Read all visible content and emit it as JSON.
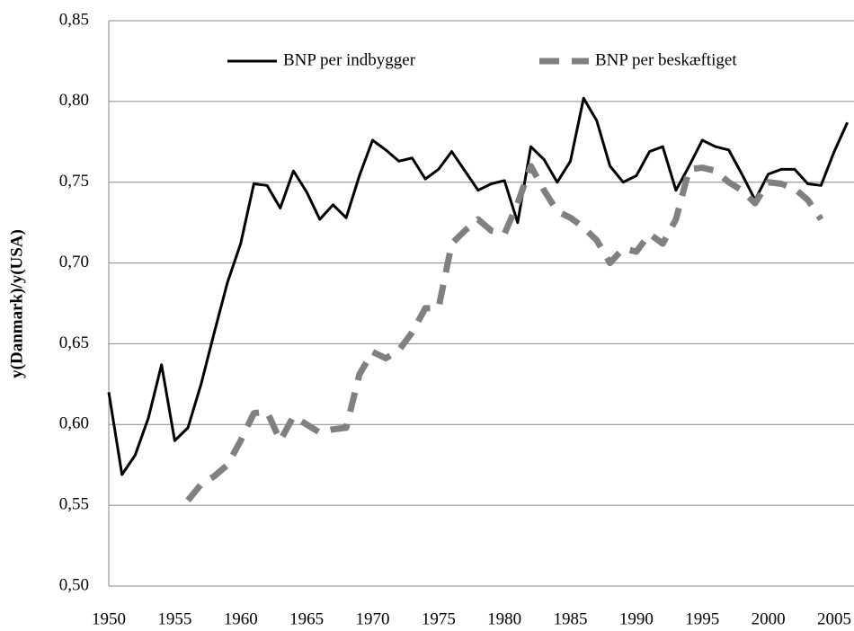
{
  "chart_data": {
    "type": "line",
    "y_label": "y(Danmark)/y(USA)",
    "x": [
      1950,
      1951,
      1952,
      1953,
      1954,
      1955,
      1956,
      1957,
      1958,
      1959,
      1960,
      1961,
      1962,
      1963,
      1964,
      1965,
      1966,
      1967,
      1968,
      1969,
      1970,
      1971,
      1972,
      1973,
      1974,
      1975,
      1976,
      1977,
      1978,
      1979,
      1980,
      1981,
      1982,
      1983,
      1984,
      1985,
      1986,
      1987,
      1988,
      1989,
      1990,
      1991,
      1992,
      1993,
      1994,
      1995,
      1996,
      1997,
      1998,
      1999,
      2000,
      2001,
      2002,
      2003,
      2004,
      2005,
      2006
    ],
    "series": [
      {
        "name": "BNP per indbygger",
        "color": "#000000",
        "dashed": false,
        "values": [
          0.62,
          0.569,
          0.581,
          0.604,
          0.637,
          0.59,
          0.598,
          0.625,
          0.657,
          0.688,
          0.712,
          0.749,
          0.748,
          0.734,
          0.757,
          0.744,
          0.727,
          0.736,
          0.728,
          0.754,
          0.776,
          0.77,
          0.763,
          0.765,
          0.752,
          0.758,
          0.769,
          0.757,
          0.745,
          0.749,
          0.751,
          0.725,
          0.772,
          0.764,
          0.75,
          0.763,
          0.802,
          0.788,
          0.76,
          0.75,
          0.754,
          0.769,
          0.772,
          0.745,
          0.76,
          0.776,
          0.772,
          0.77,
          0.755,
          0.739,
          0.755,
          0.758,
          0.758,
          0.749,
          0.748,
          0.769,
          0.787
        ]
      },
      {
        "name": "BNP per beskæftiget",
        "color": "#808080",
        "dashed": true,
        "values": [
          null,
          null,
          null,
          null,
          null,
          null,
          0.553,
          0.563,
          0.568,
          0.575,
          0.59,
          0.607,
          0.608,
          0.59,
          0.605,
          0.6,
          0.595,
          0.597,
          0.598,
          0.631,
          0.645,
          0.641,
          0.646,
          0.657,
          0.672,
          0.672,
          0.712,
          0.72,
          0.727,
          0.72,
          0.718,
          0.737,
          0.76,
          0.745,
          0.732,
          0.728,
          0.722,
          0.714,
          0.7,
          0.709,
          0.707,
          0.718,
          0.712,
          0.727,
          0.758,
          0.759,
          0.757,
          0.75,
          0.745,
          0.737,
          0.75,
          0.749,
          0.746,
          0.739,
          0.727,
          null,
          null
        ]
      }
    ],
    "xlim": [
      1950,
      2006.5
    ],
    "xticks": [
      1950,
      1955,
      1960,
      1965,
      1970,
      1975,
      1980,
      1985,
      1990,
      1995,
      2000,
      2005
    ],
    "ylim": [
      0.5,
      0.85
    ],
    "yticks": [
      {
        "value": 0.5,
        "label": "0,50"
      },
      {
        "value": 0.55,
        "label": "0,55"
      },
      {
        "value": 0.6,
        "label": "0,60"
      },
      {
        "value": 0.65,
        "label": "0,65"
      },
      {
        "value": 0.7,
        "label": "0,70"
      },
      {
        "value": 0.75,
        "label": "0,75"
      },
      {
        "value": 0.8,
        "label": "0,80"
      },
      {
        "value": 0.85,
        "label": "0,85"
      }
    ],
    "grid": true
  }
}
